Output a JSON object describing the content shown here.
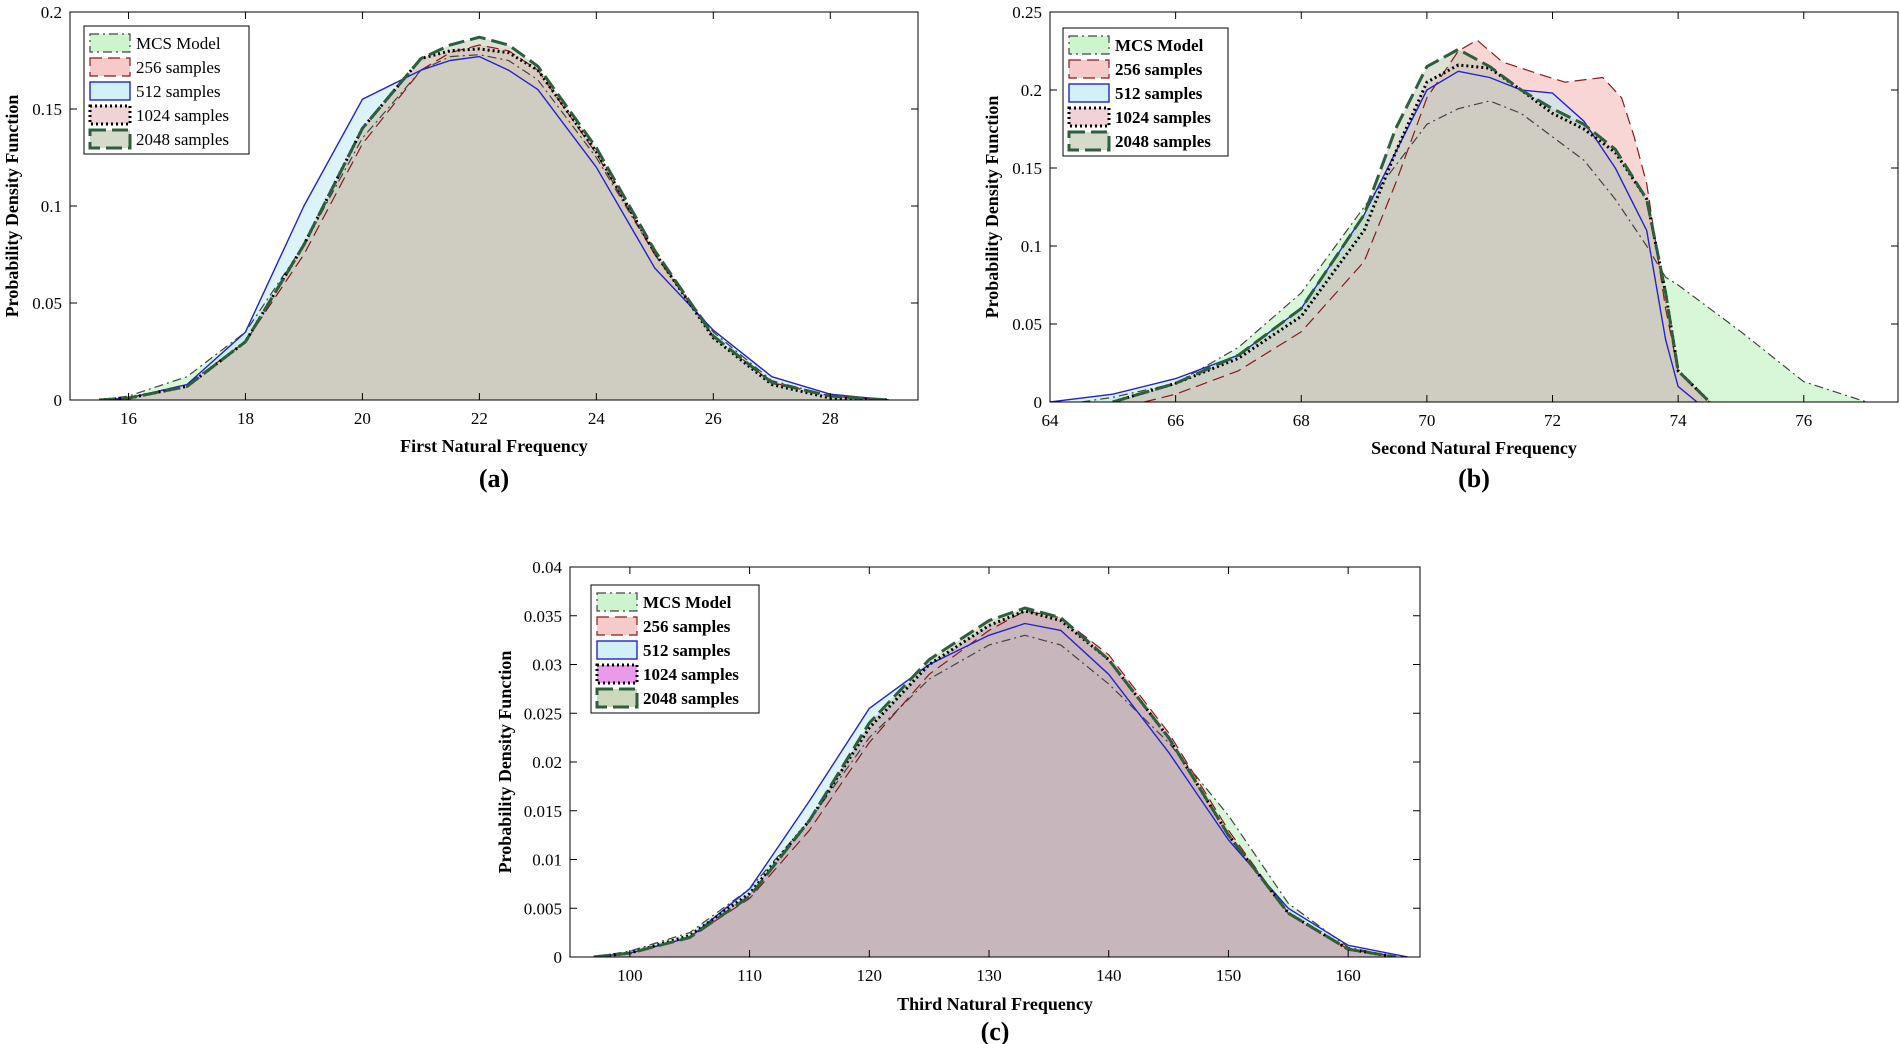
{
  "figure": {
    "caption_a": "(a)",
    "caption_b": "(b)",
    "caption_c": "(c)"
  },
  "chart_data": [
    {
      "type": "area",
      "panel": "(a)",
      "title": "",
      "xlabel": "First Natural Frequency",
      "ylabel": "Probability Density Function",
      "xlim": [
        15,
        29.5
      ],
      "ylim": [
        0,
        0.2
      ],
      "xticks": [
        16,
        18,
        20,
        22,
        24,
        26,
        28
      ],
      "yticks": [
        0,
        0.05,
        0.1,
        0.15,
        0.2
      ],
      "ytick_labels": [
        "0",
        "0.05",
        "0.1",
        "0.15",
        "0.2"
      ],
      "legend_position": "top-left",
      "series": [
        {
          "name": "MCS Model",
          "style": "dash-dot",
          "line_color": "#444444",
          "fill_color": "#b8f0b8",
          "x": [
            15.5,
            16,
            17,
            18,
            19,
            20,
            21,
            21.5,
            22,
            22.5,
            23,
            24,
            25,
            26,
            27,
            28,
            29
          ],
          "y": [
            0,
            0.002,
            0.012,
            0.035,
            0.08,
            0.135,
            0.17,
            0.177,
            0.178,
            0.175,
            0.165,
            0.125,
            0.075,
            0.035,
            0.01,
            0.002,
            0
          ]
        },
        {
          "name": "256 samples",
          "style": "dash",
          "line_color": "#8b1a1a",
          "fill_color": "#f4b4b4",
          "x": [
            15.5,
            16,
            17,
            18,
            19,
            20,
            21,
            21.5,
            22,
            22.5,
            23,
            24,
            25,
            26,
            27,
            28,
            29
          ],
          "y": [
            0,
            0.001,
            0.008,
            0.03,
            0.075,
            0.132,
            0.17,
            0.179,
            0.183,
            0.18,
            0.17,
            0.127,
            0.075,
            0.033,
            0.009,
            0.002,
            0
          ]
        },
        {
          "name": "512 samples",
          "style": "solid",
          "line_color": "#2424c8",
          "fill_color": "#bfeaf5",
          "x": [
            15.5,
            16,
            17,
            18,
            19,
            20,
            21,
            21.5,
            22,
            22.5,
            23,
            24,
            25,
            26,
            27,
            28,
            29
          ],
          "y": [
            0,
            0.001,
            0.008,
            0.035,
            0.1,
            0.155,
            0.17,
            0.175,
            0.177,
            0.17,
            0.16,
            0.12,
            0.068,
            0.036,
            0.012,
            0.003,
            0
          ]
        },
        {
          "name": "1024 samples",
          "style": "dotted",
          "line_color": "#000000",
          "fill_color": "#e8c0c8",
          "x": [
            15.5,
            16,
            17,
            18,
            19,
            20,
            21,
            21.5,
            22,
            22.5,
            23,
            24,
            25,
            26,
            27,
            28,
            29
          ],
          "y": [
            0,
            0.001,
            0.007,
            0.03,
            0.08,
            0.14,
            0.176,
            0.18,
            0.181,
            0.179,
            0.17,
            0.128,
            0.076,
            0.032,
            0.008,
            0.001,
            0
          ]
        },
        {
          "name": "2048 samples",
          "style": "long-dash",
          "line_color": "#2e5e3e",
          "fill_color": "#c3cbb5",
          "x": [
            15.5,
            16,
            17,
            18,
            19,
            20,
            21,
            21.5,
            22,
            22.5,
            23,
            24,
            25,
            26,
            27,
            28,
            29
          ],
          "y": [
            0,
            0.001,
            0.007,
            0.03,
            0.08,
            0.14,
            0.176,
            0.183,
            0.187,
            0.183,
            0.172,
            0.13,
            0.077,
            0.033,
            0.009,
            0.002,
            0
          ]
        }
      ]
    },
    {
      "type": "area",
      "panel": "(b)",
      "title": "",
      "xlabel": "Second Natural Frequency",
      "ylabel": "Probability Density Function",
      "xlim": [
        64,
        77.5
      ],
      "ylim": [
        0,
        0.25
      ],
      "xticks": [
        64,
        66,
        68,
        70,
        72,
        74,
        76
      ],
      "yticks": [
        0,
        0.05,
        0.1,
        0.15,
        0.2,
        0.25
      ],
      "ytick_labels": [
        "0",
        "0.05",
        "0.1",
        "0.15",
        "0.2",
        "0.25"
      ],
      "legend_position": "top-left",
      "series": [
        {
          "name": "MCS Model",
          "style": "dash-dot",
          "line_color": "#444444",
          "fill_color": "#b8f0b8",
          "x": [
            64.5,
            65,
            66,
            67,
            68,
            69,
            70,
            70.5,
            71,
            71.5,
            72,
            72.5,
            73,
            73.5,
            73.8,
            74,
            75,
            76,
            77
          ],
          "y": [
            0,
            0.003,
            0.012,
            0.035,
            0.07,
            0.125,
            0.178,
            0.188,
            0.193,
            0.185,
            0.17,
            0.155,
            0.13,
            0.1,
            0.08,
            0.075,
            0.045,
            0.013,
            0
          ]
        },
        {
          "name": "256 samples",
          "style": "dash",
          "line_color": "#8b1a1a",
          "fill_color": "#f4b4b4",
          "x": [
            65.5,
            66,
            67,
            68,
            69,
            69.5,
            70,
            70.5,
            70.8,
            71.2,
            71.8,
            72.2,
            72.8,
            73.1,
            73.3,
            73.5,
            73.8,
            74,
            74.5
          ],
          "y": [
            0,
            0.005,
            0.02,
            0.045,
            0.09,
            0.14,
            0.195,
            0.225,
            0.232,
            0.218,
            0.21,
            0.205,
            0.208,
            0.195,
            0.17,
            0.14,
            0.06,
            0.02,
            0
          ]
        },
        {
          "name": "512 samples",
          "style": "solid",
          "line_color": "#2424c8",
          "fill_color": "#bfeaf5",
          "x": [
            64,
            65,
            66,
            67,
            68,
            69,
            70,
            70.5,
            71,
            71.5,
            72,
            72.5,
            73,
            73.5,
            73.8,
            74,
            74.3
          ],
          "y": [
            0,
            0.005,
            0.015,
            0.03,
            0.06,
            0.12,
            0.2,
            0.212,
            0.208,
            0.2,
            0.198,
            0.18,
            0.15,
            0.11,
            0.04,
            0.01,
            0
          ]
        },
        {
          "name": "1024 samples",
          "style": "dotted",
          "line_color": "#000000",
          "fill_color": "#e8c0c8",
          "x": [
            65,
            66,
            67,
            68,
            69,
            69.5,
            70,
            70.5,
            71,
            71.5,
            72,
            72.5,
            73,
            73.5,
            73.8,
            74,
            74.5
          ],
          "y": [
            0,
            0.012,
            0.028,
            0.055,
            0.11,
            0.16,
            0.205,
            0.216,
            0.214,
            0.2,
            0.185,
            0.175,
            0.16,
            0.13,
            0.07,
            0.02,
            0
          ]
        },
        {
          "name": "2048 samples",
          "style": "long-dash",
          "line_color": "#2e5e3e",
          "fill_color": "#c3cbb5",
          "x": [
            65,
            66,
            67,
            68,
            69,
            69.5,
            70,
            70.5,
            71,
            71.5,
            72,
            72.5,
            73,
            73.5,
            73.8,
            74,
            74.5
          ],
          "y": [
            0,
            0.012,
            0.03,
            0.06,
            0.12,
            0.175,
            0.215,
            0.226,
            0.215,
            0.2,
            0.188,
            0.178,
            0.162,
            0.13,
            0.07,
            0.02,
            0
          ]
        }
      ]
    },
    {
      "type": "area",
      "panel": "(c)",
      "title": "",
      "xlabel": "Third Natural Frequency",
      "ylabel": "Probability Density Function",
      "xlim": [
        95,
        166
      ],
      "ylim": [
        0,
        0.04
      ],
      "xticks": [
        100,
        110,
        120,
        130,
        140,
        150,
        160
      ],
      "yticks": [
        0,
        0.005,
        0.01,
        0.015,
        0.02,
        0.025,
        0.03,
        0.035,
        0.04
      ],
      "ytick_labels": [
        "0",
        "0.005",
        "0.01",
        "0.015",
        "0.02",
        "0.025",
        "0.03",
        "0.035",
        "0.04"
      ],
      "legend_position": "top-left",
      "series": [
        {
          "name": "MCS Model",
          "style": "dash-dot",
          "line_color": "#444444",
          "fill_color": "#b8f0b8",
          "x": [
            97,
            100,
            105,
            110,
            115,
            120,
            125,
            130,
            133,
            136,
            140,
            145,
            150,
            155,
            160,
            164
          ],
          "y": [
            0,
            0.0006,
            0.0025,
            0.007,
            0.014,
            0.0225,
            0.0285,
            0.032,
            0.033,
            0.032,
            0.028,
            0.022,
            0.0145,
            0.0055,
            0.001,
            0
          ]
        },
        {
          "name": "256 samples",
          "style": "dash",
          "line_color": "#8b1a1a",
          "fill_color": "#f4b4b4",
          "x": [
            97,
            100,
            105,
            110,
            115,
            120,
            125,
            130,
            133,
            136,
            140,
            145,
            150,
            155,
            160,
            164
          ],
          "y": [
            0,
            0.0004,
            0.002,
            0.006,
            0.013,
            0.022,
            0.029,
            0.0335,
            0.0355,
            0.0348,
            0.031,
            0.023,
            0.013,
            0.0045,
            0.0008,
            0
          ]
        },
        {
          "name": "512 samples",
          "style": "solid",
          "line_color": "#2424c8",
          "fill_color": "#bfeaf5",
          "x": [
            97,
            100,
            105,
            110,
            115,
            120,
            125,
            130,
            133,
            136,
            140,
            145,
            150,
            155,
            160,
            165
          ],
          "y": [
            0,
            0.0004,
            0.002,
            0.007,
            0.016,
            0.0255,
            0.03,
            0.033,
            0.0342,
            0.0335,
            0.029,
            0.021,
            0.012,
            0.005,
            0.0012,
            0
          ]
        },
        {
          "name": "1024 samples",
          "style": "dotted",
          "line_color": "#000000",
          "fill_color": "#e070e0",
          "x": [
            97,
            100,
            105,
            110,
            115,
            120,
            125,
            130,
            133,
            136,
            140,
            145,
            150,
            155,
            160,
            164
          ],
          "y": [
            0,
            0.0004,
            0.0022,
            0.0065,
            0.014,
            0.0235,
            0.03,
            0.034,
            0.0355,
            0.0345,
            0.0305,
            0.0225,
            0.0125,
            0.0045,
            0.0008,
            0
          ]
        },
        {
          "name": "2048 samples",
          "style": "long-dash",
          "line_color": "#2e5e3e",
          "fill_color": "#b8c8a0",
          "x": [
            97,
            100,
            105,
            110,
            115,
            120,
            125,
            130,
            133,
            136,
            140,
            145,
            150,
            155,
            160,
            164
          ],
          "y": [
            0,
            0.0004,
            0.002,
            0.0062,
            0.014,
            0.024,
            0.0305,
            0.0345,
            0.0358,
            0.0348,
            0.0305,
            0.0225,
            0.0125,
            0.0045,
            0.0008,
            0
          ]
        }
      ]
    }
  ]
}
